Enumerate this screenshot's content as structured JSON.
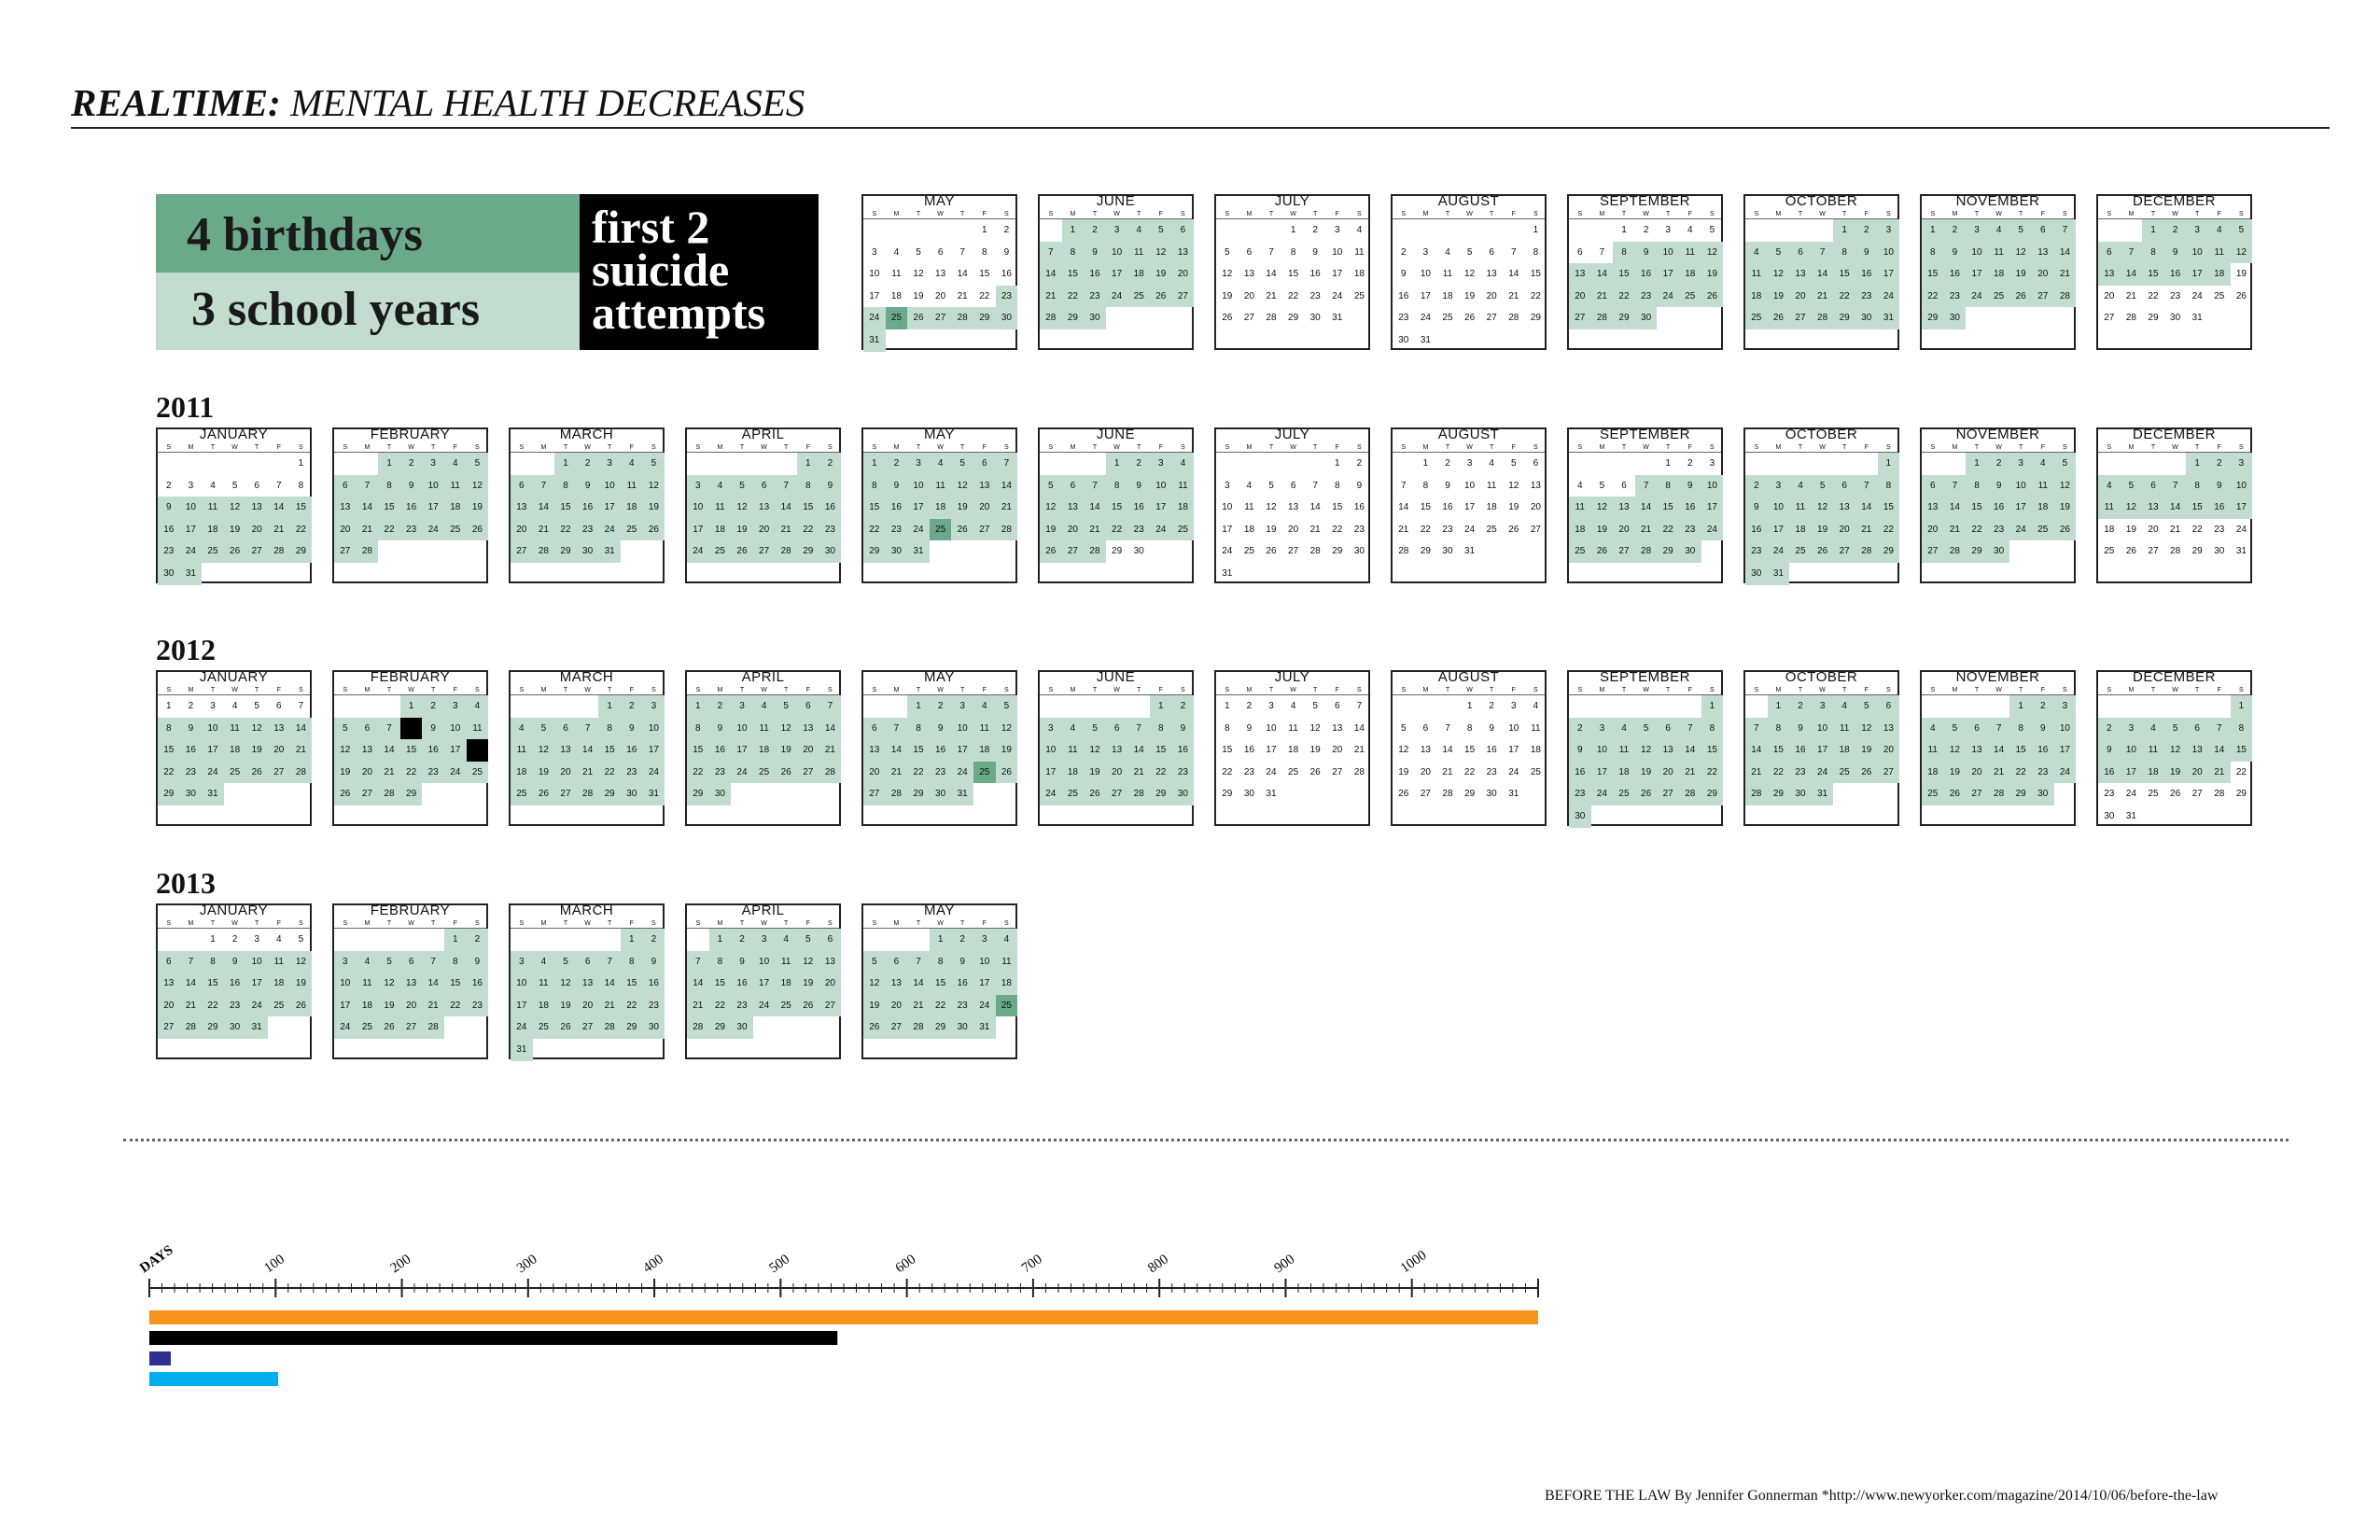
{
  "title": {
    "bold": "REALTIME:",
    "rest": "MENTAL HEALTH DECREASES"
  },
  "summary": {
    "birthdays": "4 birthdays",
    "school_years": "3 school years",
    "attempts_lines": [
      "first 2",
      "suicide",
      "attempts"
    ]
  },
  "colors": {
    "highlight": "#c2ddd0",
    "highlight_dark": "#6aaa88",
    "event": "#000000",
    "bar_orange": "#f7941d",
    "bar_black": "#000000",
    "bar_navy": "#2e3192",
    "bar_blue": "#00aeef"
  },
  "weekday_letters": [
    "S",
    "M",
    "T",
    "W",
    "T",
    "F",
    "S"
  ],
  "years": [
    {
      "label": "",
      "months": [
        {
          "name": "MAY",
          "start": 5,
          "days": 31,
          "hl_from": 23,
          "hl_to": 31,
          "dark": [
            25
          ]
        },
        {
          "name": "JUNE",
          "start": 1,
          "days": 30,
          "hl_from": 1,
          "hl_to": 30,
          "dark": []
        },
        {
          "name": "JULY",
          "start": 3,
          "days": 31,
          "hl_from": 0,
          "hl_to": 0,
          "dark": []
        },
        {
          "name": "AUGUST",
          "start": 6,
          "days": 31,
          "hl_from": 0,
          "hl_to": 0,
          "dark": []
        },
        {
          "name": "SEPTEMBER",
          "start": 2,
          "days": 30,
          "hl_from": 8,
          "hl_to": 30,
          "dark": []
        },
        {
          "name": "OCTOBER",
          "start": 4,
          "days": 31,
          "hl_from": 1,
          "hl_to": 31,
          "dark": []
        },
        {
          "name": "NOVEMBER",
          "start": 0,
          "days": 30,
          "hl_from": 1,
          "hl_to": 30,
          "dark": []
        },
        {
          "name": "DECEMBER",
          "start": 2,
          "days": 31,
          "hl_from": 1,
          "hl_to": 18,
          "dark": []
        }
      ]
    },
    {
      "label": "2011",
      "months": [
        {
          "name": "JANUARY",
          "start": 6,
          "days": 31,
          "hl_from": 9,
          "hl_to": 31,
          "dark": []
        },
        {
          "name": "FEBRUARY",
          "start": 2,
          "days": 28,
          "hl_from": 1,
          "hl_to": 28,
          "dark": []
        },
        {
          "name": "MARCH",
          "start": 2,
          "days": 31,
          "hl_from": 1,
          "hl_to": 31,
          "dark": []
        },
        {
          "name": "APRIL",
          "start": 5,
          "days": 30,
          "hl_from": 1,
          "hl_to": 30,
          "dark": []
        },
        {
          "name": "MAY",
          "start": 0,
          "days": 31,
          "hl_from": 1,
          "hl_to": 31,
          "dark": [
            25
          ]
        },
        {
          "name": "JUNE",
          "start": 3,
          "days": 30,
          "hl_from": 1,
          "hl_to": 28,
          "dark": []
        },
        {
          "name": "JULY",
          "start": 5,
          "days": 31,
          "hl_from": 0,
          "hl_to": 0,
          "dark": []
        },
        {
          "name": "AUGUST",
          "start": 1,
          "days": 31,
          "hl_from": 0,
          "hl_to": 0,
          "dark": []
        },
        {
          "name": "SEPTEMBER",
          "start": 4,
          "days": 30,
          "hl_from": 7,
          "hl_to": 30,
          "dark": []
        },
        {
          "name": "OCTOBER",
          "start": 6,
          "days": 31,
          "hl_from": 1,
          "hl_to": 31,
          "dark": []
        },
        {
          "name": "NOVEMBER",
          "start": 2,
          "days": 30,
          "hl_from": 1,
          "hl_to": 30,
          "dark": []
        },
        {
          "name": "DECEMBER",
          "start": 4,
          "days": 31,
          "hl_from": 1,
          "hl_to": 17,
          "dark": []
        }
      ]
    },
    {
      "label": "2012",
      "months": [
        {
          "name": "JANUARY",
          "start": 0,
          "days": 31,
          "hl_from": 8,
          "hl_to": 31,
          "dark": [],
          "black": []
        },
        {
          "name": "FEBRUARY",
          "start": 3,
          "days": 29,
          "hl_from": 1,
          "hl_to": 29,
          "dark": [],
          "black": [
            8,
            18
          ]
        },
        {
          "name": "MARCH",
          "start": 4,
          "days": 31,
          "hl_from": 1,
          "hl_to": 31,
          "dark": []
        },
        {
          "name": "APRIL",
          "start": 0,
          "days": 30,
          "hl_from": 1,
          "hl_to": 30,
          "dark": []
        },
        {
          "name": "MAY",
          "start": 2,
          "days": 31,
          "hl_from": 1,
          "hl_to": 31,
          "dark": [
            25
          ]
        },
        {
          "name": "JUNE",
          "start": 5,
          "days": 30,
          "hl_from": 1,
          "hl_to": 30,
          "dark": []
        },
        {
          "name": "JULY",
          "start": 0,
          "days": 31,
          "hl_from": 0,
          "hl_to": 0,
          "dark": []
        },
        {
          "name": "AUGUST",
          "start": 3,
          "days": 31,
          "hl_from": 0,
          "hl_to": 0,
          "dark": []
        },
        {
          "name": "SEPTEMBER",
          "start": 6,
          "days": 30,
          "hl_from": 1,
          "hl_to": 30,
          "dark": []
        },
        {
          "name": "OCTOBER",
          "start": 1,
          "days": 31,
          "hl_from": 1,
          "hl_to": 31,
          "dark": []
        },
        {
          "name": "NOVEMBER",
          "start": 4,
          "days": 30,
          "hl_from": 1,
          "hl_to": 30,
          "dark": []
        },
        {
          "name": "DECEMBER",
          "start": 6,
          "days": 31,
          "hl_from": 1,
          "hl_to": 21,
          "dark": []
        }
      ]
    },
    {
      "label": "2013",
      "months": [
        {
          "name": "JANUARY",
          "start": 2,
          "days": 31,
          "hl_from": 6,
          "hl_to": 31,
          "dark": []
        },
        {
          "name": "FEBRUARY",
          "start": 5,
          "days": 28,
          "hl_from": 1,
          "hl_to": 28,
          "dark": []
        },
        {
          "name": "MARCH",
          "start": 5,
          "days": 31,
          "hl_from": 1,
          "hl_to": 31,
          "dark": []
        },
        {
          "name": "APRIL",
          "start": 1,
          "days": 30,
          "hl_from": 1,
          "hl_to": 30,
          "dark": []
        },
        {
          "name": "MAY",
          "start": 3,
          "days": 31,
          "hl_from": 1,
          "hl_to": 31,
          "dark": [
            25
          ]
        }
      ]
    }
  ],
  "days_axis": {
    "label": "DAYS",
    "max": 1100,
    "ticks": [
      "100",
      "200",
      "300",
      "400",
      "500",
      "600",
      "700",
      "800",
      "900",
      "1000"
    ],
    "bars": [
      {
        "days": 1110,
        "color": "#f7941d"
      },
      {
        "days": 545,
        "color": "#000000"
      },
      {
        "days": 17,
        "color": "#2e3192"
      },
      {
        "days": 102,
        "color": "#00aeef"
      }
    ]
  },
  "source": "BEFORE THE LAW By Jennifer Gonnerman *http://www.newyorker.com/magazine/2014/10/06/before-the-law"
}
